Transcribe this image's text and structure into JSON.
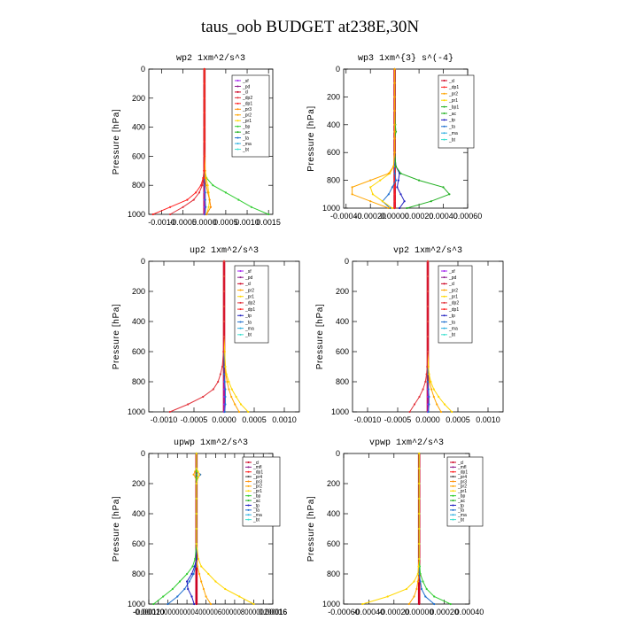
{
  "title": "taus_oob  BUDGET at238E,30N",
  "colors": {
    "_sf": "#a020f0",
    "_pd": "#8b1a8b",
    "_mfl": "#8b1a8b",
    "_cl": "#cc0022",
    "_dp2": "#e2313a",
    "_dp1": "#ff2020",
    "_pr3": "#ff8c00",
    "_pr2": "#ffa500",
    "_pr1": "#ffd700",
    "_bp": "#32cd32",
    "_ac": "#22b022",
    "_tp": "#2020c0",
    "_ta": "#1e6fcf",
    "_ma": "#30b0e0",
    "_bt": "#40e0d0",
    "_bp1": "#22b022"
  },
  "chart_data": [
    {
      "type": "line",
      "title": "wp2   1xm^2/s^3",
      "ylabel": "Pressure [hPa]",
      "ylim": [
        1000,
        0
      ],
      "yticks": [
        0,
        200,
        400,
        600,
        800,
        1000
      ],
      "xlim": [
        -0.0013,
        0.0016
      ],
      "xticks": [
        -0.001,
        -0.0005,
        0.0,
        0.0005,
        0.001,
        0.0015
      ],
      "xtick_labels": [
        "-0.0010",
        "-0.0005",
        "0.0000",
        "0.0005",
        "0.0010",
        "0.0015"
      ],
      "y": [
        0,
        100,
        200,
        300,
        400,
        500,
        600,
        700,
        750,
        800,
        850,
        900,
        950,
        1000
      ],
      "legend": [
        "_sf",
        "_pd",
        "_cl",
        "_dp2",
        "_dp1",
        "_pr3",
        "_pr2",
        "_pr1",
        "_bp",
        "_ac",
        "_ta",
        "_ma",
        "_bt"
      ],
      "series": [
        {
          "name": "_dp1",
          "values": [
            0,
            0,
            0,
            0,
            0,
            0,
            0,
            -1e-05,
            -3e-05,
            -8e-05,
            -0.0002,
            -0.0004,
            -0.0008,
            -0.0012
          ]
        },
        {
          "name": "_dp2",
          "values": [
            0,
            0,
            0,
            0,
            0,
            0,
            0,
            -1e-05,
            -2e-05,
            -5e-05,
            -0.00012,
            -0.00025,
            -0.0005,
            -0.0008
          ]
        },
        {
          "name": "_pr3",
          "values": [
            0,
            0,
            0,
            0,
            0,
            0,
            0,
            1e-05,
            2e-05,
            4e-05,
            8e-05,
            0.00012,
            0.00015,
            5e-05
          ]
        },
        {
          "name": "_pr1",
          "values": [
            0,
            0,
            0,
            0,
            0,
            0,
            1e-05,
            2e-05,
            4e-05,
            8e-05,
            0.0001,
            0.00012,
            0.0001,
            5e-05
          ]
        },
        {
          "name": "_bp",
          "values": [
            0,
            0,
            0,
            0,
            0,
            0,
            0,
            1e-05,
            5e-05,
            0.0002,
            0.0005,
            0.0008,
            0.0011,
            0.0015
          ]
        },
        {
          "name": "_ta",
          "values": [
            0,
            0,
            0,
            0,
            0,
            0,
            0,
            0,
            0,
            1e-05,
            2e-05,
            2e-05,
            3e-05,
            2e-05
          ]
        },
        {
          "name": "_sf",
          "values": [
            0,
            0,
            0,
            0,
            0,
            0,
            0,
            0,
            0,
            0,
            0,
            0,
            0,
            0
          ]
        },
        {
          "name": "_cl",
          "values": [
            0,
            0,
            0,
            0,
            0,
            0,
            0,
            0,
            0,
            0,
            0,
            0,
            0,
            0
          ]
        }
      ]
    },
    {
      "type": "line",
      "title": "wp3   1xm^{3} s^(-4}",
      "ylabel": "Pressure [hPa]",
      "ylim": [
        1000,
        0
      ],
      "yticks": [
        0,
        200,
        400,
        600,
        800,
        1000
      ],
      "xlim": [
        -0.00042,
        0.0006
      ],
      "xticks": [
        -0.0004,
        -0.0002,
        0.0,
        0.0002,
        0.0004,
        0.0006
      ],
      "xtick_labels": [
        "-0.00040",
        "-0.00020",
        "0.00000",
        "0.00020",
        "0.00040",
        "0.00060"
      ],
      "y": [
        0,
        100,
        200,
        300,
        400,
        450,
        500,
        600,
        700,
        750,
        800,
        850,
        900,
        950,
        1000
      ],
      "legend": [
        "_cl",
        "_dp1",
        "_pr2",
        "_pr1",
        "_bp1",
        "_ac",
        "_tp",
        "_ta",
        "_ma",
        "_bt"
      ],
      "series": [
        {
          "name": "_pr2",
          "values": [
            0,
            0,
            0,
            0,
            0,
            0,
            0,
            0,
            -1e-05,
            -5e-05,
            -0.0002,
            -0.00035,
            -0.00035,
            -0.0002,
            -5e-05
          ]
        },
        {
          "name": "_pr1",
          "values": [
            0,
            0,
            0,
            0,
            0,
            0,
            0,
            0,
            -1e-05,
            -4e-05,
            -0.00012,
            -0.0002,
            -0.00018,
            -0.0001,
            -2e-05
          ]
        },
        {
          "name": "_bp1",
          "values": [
            0,
            0,
            0,
            0,
            5e-06,
            1e-05,
            0,
            0,
            1e-05,
            5e-05,
            0.0002,
            0.0004,
            0.00045,
            0.0003,
            0.0001
          ]
        },
        {
          "name": "_tp",
          "values": [
            0,
            0,
            0,
            0,
            0,
            0,
            0,
            0,
            1e-05,
            4e-05,
            3e-05,
            2e-05,
            5e-05,
            8e-05,
            4e-05
          ]
        },
        {
          "name": "_ta",
          "values": [
            0,
            0,
            0,
            0,
            0,
            0,
            0,
            0,
            0,
            0,
            1e-05,
            -2e-05,
            -5e-05,
            -0.0001,
            -4e-05
          ]
        },
        {
          "name": "_dp1",
          "values": [
            0,
            0,
            0,
            0,
            0,
            0,
            0,
            0,
            0,
            0,
            0,
            0,
            0,
            0,
            0
          ]
        },
        {
          "name": "_cl",
          "values": [
            0,
            0,
            0,
            0,
            0,
            0,
            0,
            0,
            0,
            0,
            0,
            0,
            0,
            0,
            0
          ]
        }
      ]
    },
    {
      "type": "line",
      "title": "up2   1xm^2/s^3",
      "ylabel": "Pressure [hPa]",
      "ylim": [
        1000,
        0
      ],
      "yticks": [
        0,
        200,
        400,
        600,
        800,
        1000
      ],
      "xlim": [
        -0.00125,
        0.00125
      ],
      "xticks": [
        -0.001,
        -0.0005,
        0.0,
        0.0005,
        0.001
      ],
      "xtick_labels": [
        "-0.0010",
        "-0.0005",
        "0.0000",
        "0.0005",
        "0.0010"
      ],
      "y": [
        0,
        100,
        200,
        300,
        400,
        500,
        600,
        700,
        750,
        800,
        850,
        900,
        950,
        1000
      ],
      "legend": [
        "_sf",
        "_pd",
        "_cl",
        "_pr2",
        "_pr1",
        "_dp2",
        "_dp1",
        "_tp",
        "_ta",
        "_ma",
        "_bt"
      ],
      "series": [
        {
          "name": "_dp2",
          "values": [
            0,
            0,
            0,
            0,
            0,
            0,
            -1e-05,
            -3e-05,
            -6e-05,
            -0.0001,
            -0.00018,
            -0.00035,
            -0.0006,
            -0.0009
          ]
        },
        {
          "name": "_pr1",
          "values": [
            0,
            0,
            0,
            0,
            0,
            0,
            1e-05,
            2e-05,
            4e-05,
            8e-05,
            0.00013,
            0.0002,
            0.00028,
            0.0004
          ]
        },
        {
          "name": "_pr2",
          "values": [
            0,
            0,
            0,
            0,
            0,
            0,
            1e-05,
            2e-05,
            3e-05,
            5e-05,
            8e-05,
            0.00012,
            0.00018,
            0.00025
          ]
        },
        {
          "name": "_ta",
          "values": [
            0,
            0,
            0,
            0,
            0,
            0,
            0,
            0,
            0,
            1e-05,
            2e-05,
            2e-05,
            2e-05,
            1e-05
          ]
        },
        {
          "name": "_sf",
          "values": [
            0,
            0,
            0,
            0,
            0,
            0,
            0,
            0,
            0,
            0,
            0,
            0,
            0,
            0
          ]
        },
        {
          "name": "_cl",
          "values": [
            0,
            0,
            0,
            0,
            0,
            0,
            0,
            0,
            0,
            0,
            0,
            0,
            0,
            0
          ]
        }
      ]
    },
    {
      "type": "line",
      "title": "vp2   1xm^2/s^3",
      "ylabel": "Pressure [hPa]",
      "ylim": [
        1000,
        0
      ],
      "yticks": [
        0,
        200,
        400,
        600,
        800,
        1000
      ],
      "xlim": [
        -0.00125,
        0.00125
      ],
      "xticks": [
        -0.001,
        -0.0005,
        0.0,
        0.0005,
        0.001
      ],
      "xtick_labels": [
        "-0.0010",
        "-0.0005",
        "0.0000",
        "0.0005",
        "0.0010"
      ],
      "y": [
        0,
        100,
        200,
        300,
        400,
        500,
        600,
        700,
        750,
        800,
        850,
        900,
        950,
        1000
      ],
      "legend": [
        "_sf",
        "_pd",
        "_cl",
        "_pr2",
        "_pr1",
        "_dp2",
        "_dp1",
        "_tp",
        "_ta",
        "_ma",
        "_bt"
      ],
      "series": [
        {
          "name": "_dp2",
          "values": [
            0,
            0,
            0,
            0,
            0,
            0,
            0,
            -1e-05,
            -2e-05,
            -4e-05,
            -8e-05,
            -0.00014,
            -0.00022,
            -0.0003
          ]
        },
        {
          "name": "_pr1",
          "values": [
            0,
            0,
            0,
            0,
            0,
            0,
            0,
            1e-05,
            2e-05,
            5e-05,
            0.0001,
            0.00018,
            0.00028,
            0.0004
          ]
        },
        {
          "name": "_pr2",
          "values": [
            0,
            0,
            0,
            0,
            0,
            0,
            0,
            1e-05,
            2e-05,
            3e-05,
            6e-05,
            0.0001,
            0.00015,
            0.00022
          ]
        },
        {
          "name": "_ta",
          "values": [
            0,
            0,
            0,
            0,
            0,
            0,
            0,
            0,
            0,
            0,
            1e-05,
            2e-05,
            2e-05,
            1e-05
          ]
        },
        {
          "name": "_sf",
          "values": [
            0,
            0,
            0,
            0,
            0,
            0,
            0,
            0,
            0,
            0,
            0,
            0,
            0,
            0
          ]
        },
        {
          "name": "_cl",
          "values": [
            0,
            0,
            0,
            0,
            0,
            0,
            0,
            0,
            0,
            0,
            0,
            0,
            0,
            0
          ]
        }
      ]
    },
    {
      "type": "line",
      "title": "upwp   1xm^2/s^3",
      "ylabel": "Pressure [hPa]",
      "ylim": [
        1000,
        0
      ],
      "yticks": [
        0,
        200,
        400,
        600,
        800,
        1000
      ],
      "xlim": [
        -0.0001,
        0.00016
      ],
      "xticks": [
        -0.0001,
        -8e-05,
        -6e-05,
        -4e-05,
        -2e-05,
        0.0,
        2e-05,
        4e-05,
        6e-05,
        8e-05,
        0.0001,
        0.00012,
        0.00014,
        0.00016
      ],
      "xtick_labels": [
        "-0.00010",
        "",
        "",
        "",
        "",
        "",
        "",
        "",
        "",
        "",
        "",
        "",
        "",
        "0.00016"
      ],
      "xticklabel_text": "-0.00012000000000400000600000800000200016",
      "y": [
        0,
        100,
        120,
        140,
        160,
        200,
        300,
        400,
        500,
        600,
        700,
        750,
        800,
        850,
        900,
        950,
        1000
      ],
      "legend": [
        "_cl",
        "_mfl",
        "_dp1",
        "_pr4",
        "_pr3",
        "_pr2",
        "_pr1",
        "_bp",
        "_ac",
        "_tp",
        "_ta",
        "_ma",
        "_bt"
      ],
      "series": [
        {
          "name": "_pr1",
          "values": [
            0,
            0,
            3e-06,
            6e-06,
            3e-06,
            0,
            0,
            0,
            0,
            0,
            4e-06,
            1e-05,
            2.5e-05,
            4e-05,
            6e-05,
            9e-05,
            0.00012
          ]
        },
        {
          "name": "_bp",
          "values": [
            0,
            0,
            0,
            0,
            0,
            0,
            0,
            0,
            0,
            0,
            -3e-06,
            -8e-06,
            -2e-05,
            -3.5e-05,
            -5e-05,
            -7e-05,
            -9e-05
          ]
        },
        {
          "name": "_tp",
          "values": [
            0,
            0,
            0,
            0,
            0,
            0,
            0,
            0,
            0,
            0,
            0,
            -4e-06,
            -1e-05,
            -2e-05,
            -1.8e-05,
            -1e-05,
            -5e-06
          ]
        },
        {
          "name": "_ta",
          "values": [
            0,
            0,
            2e-06,
            8e-06,
            3e-06,
            0,
            0,
            0,
            0,
            0,
            0,
            -2e-06,
            -6e-06,
            -1.5e-05,
            -2.5e-05,
            -4e-05,
            -6e-05
          ]
        },
        {
          "name": "_pr2",
          "values": [
            0,
            0,
            -3e-06,
            -6e-06,
            -2e-06,
            0,
            0,
            0,
            0,
            0,
            0,
            2e-06,
            6e-06,
            1e-05,
            1.5e-05,
            2e-05,
            3e-05
          ]
        },
        {
          "name": "_cl",
          "values": [
            0,
            0,
            0,
            0,
            0,
            0,
            0,
            0,
            0,
            0,
            0,
            0,
            0,
            0,
            0,
            0,
            0
          ]
        }
      ]
    },
    {
      "type": "line",
      "title": "vpwp   1xm^2/s^3",
      "ylabel": "Pressure [hPa]",
      "ylim": [
        1000,
        0
      ],
      "yticks": [
        0,
        200,
        400,
        600,
        800,
        1000
      ],
      "xlim": [
        -0.0006,
        0.0004
      ],
      "xticks": [
        -0.0006,
        -0.0004,
        -0.0002,
        0.0,
        0.0002,
        0.0004
      ],
      "xtick_labels": [
        "-0.00060",
        "-0.00040",
        "-0.00020",
        "0.00000",
        "0.00020",
        "0.00040"
      ],
      "y": [
        0,
        100,
        200,
        300,
        400,
        500,
        600,
        700,
        750,
        800,
        850,
        900,
        950,
        1000
      ],
      "legend": [
        "_cl",
        "_mfl",
        "_dp1",
        "_pr4",
        "_pr3",
        "_pr2",
        "_pr1",
        "_bp",
        "_ac",
        "_tp",
        "_ta",
        "_ma",
        "_bt"
      ],
      "series": [
        {
          "name": "_pr1",
          "values": [
            0,
            0,
            0,
            0,
            0,
            0,
            0,
            0,
            -5e-06,
            -1e-05,
            -4e-05,
            -0.0001,
            -0.00025,
            -0.00045
          ]
        },
        {
          "name": "_bp",
          "values": [
            0,
            0,
            0,
            0,
            0,
            0,
            0,
            0,
            5e-06,
            1e-05,
            3e-05,
            6e-05,
            0.00012,
            0.00025
          ]
        },
        {
          "name": "_ta",
          "values": [
            0,
            0,
            0,
            0,
            0,
            0,
            0,
            0,
            0,
            0,
            1e-05,
            2e-05,
            5e-05,
            0.00012
          ]
        },
        {
          "name": "_pr2",
          "values": [
            0,
            0,
            0,
            0,
            0,
            0,
            0,
            0,
            0,
            0,
            -1e-05,
            -2e-05,
            -4e-05,
            -8e-05
          ]
        },
        {
          "name": "_cl",
          "values": [
            0,
            0,
            0,
            0,
            0,
            0,
            0,
            0,
            0,
            0,
            0,
            0,
            0,
            0
          ]
        }
      ]
    }
  ]
}
